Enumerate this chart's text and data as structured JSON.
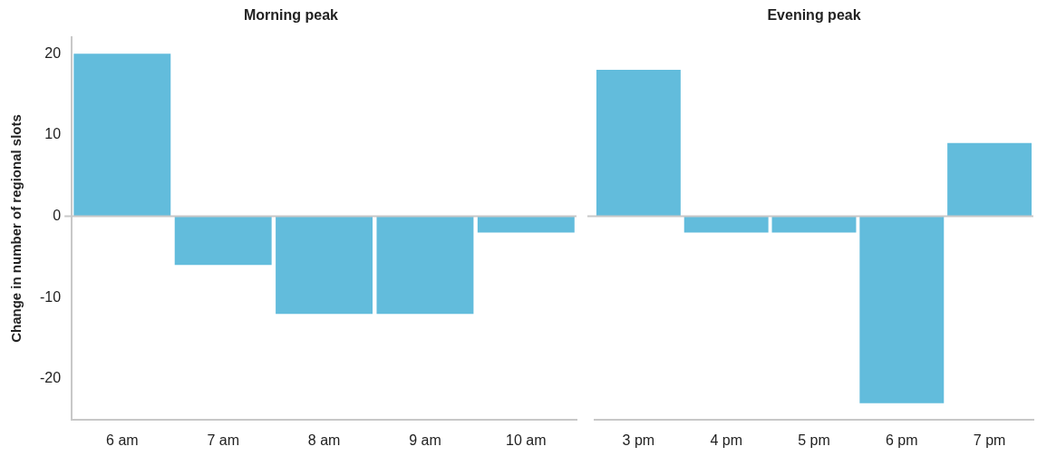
{
  "chart_data": [
    {
      "type": "bar",
      "title": "Morning peak",
      "ylabel": "Change in number of regional slots",
      "categories": [
        "6 am",
        "7 am",
        "8 am",
        "9 am",
        "10 am"
      ],
      "values": [
        20,
        -6,
        -12,
        -12,
        -2
      ],
      "color": "#62bcdc",
      "ylim": [
        -25,
        22
      ],
      "yticks": [
        -20,
        -10,
        0,
        10,
        20
      ],
      "grid": false,
      "ref_lines": [
        {
          "axis": "y",
          "value": 0,
          "color": "#c8c8c8"
        }
      ]
    },
    {
      "type": "bar",
      "title": "Evening peak",
      "categories": [
        "3 pm",
        "4 pm",
        "5 pm",
        "6 pm",
        "7 pm"
      ],
      "values": [
        18,
        -2,
        -2,
        -23,
        9
      ],
      "color": "#62bcdc",
      "yticks": [
        -20,
        -10,
        0,
        10,
        20
      ],
      "grid": false,
      "tick_labels": "x",
      "ref_lines": [
        {
          "axis": "y",
          "value": 0,
          "color": "#c8c8c8"
        }
      ]
    }
  ]
}
